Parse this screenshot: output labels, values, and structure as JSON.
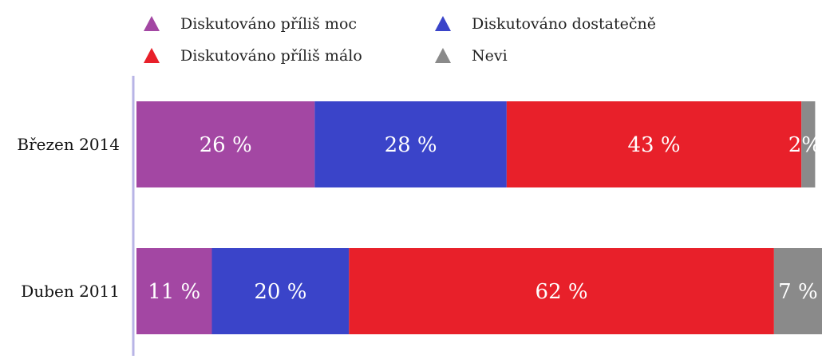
{
  "chart_data": {
    "type": "bar",
    "orientation": "horizontal",
    "stacked": true,
    "categories": [
      "Březen 2014",
      "Duben 2011"
    ],
    "series": [
      {
        "name": "Diskutováno příliš moc",
        "color": "#a347a3",
        "values": [
          26,
          11
        ],
        "labels": [
          "26 %",
          "11 %"
        ]
      },
      {
        "name": "Diskutováno dostatečně",
        "color": "#3a44c9",
        "values": [
          28,
          20
        ],
        "labels": [
          "28 %",
          "20 %"
        ]
      },
      {
        "name": "Diskutováno příliš málo",
        "color": "#e8202a",
        "values": [
          43,
          62
        ],
        "labels": [
          "43 %",
          "62 %"
        ]
      },
      {
        "name": "Nevi",
        "color": "#8a8a8a",
        "values": [
          2,
          7
        ],
        "labels": [
          "2%",
          "7 %"
        ]
      }
    ],
    "legend_position": "top",
    "xlim": [
      0,
      100
    ],
    "grid": false,
    "title": "",
    "xlabel": "",
    "ylabel": ""
  }
}
